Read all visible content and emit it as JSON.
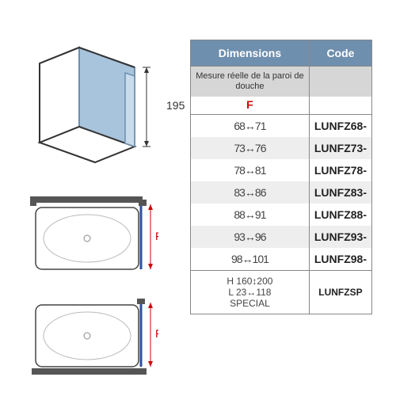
{
  "diagram": {
    "height_label": "195",
    "F_label": "F",
    "colors": {
      "outline": "#333333",
      "glass_fill": "#a8c4dc",
      "glass_stroke": "#6f8fae",
      "dim_line": "#333333",
      "f_red": "#d20000",
      "f_blue": "#2b4fa0",
      "tray_fill": "#ffffff",
      "tray_stroke": "#444444"
    },
    "iso": {
      "width": 150,
      "height": 140
    },
    "plan": {
      "width": 150,
      "height": 90
    }
  },
  "table": {
    "headers": {
      "dimensions": "Dimensions",
      "code": "Code"
    },
    "subheader": "Mesure réelle de la paroi de douche",
    "column_F": "F",
    "rows": [
      {
        "range": "68↔71",
        "code": "LUNFZ68-",
        "alt": false
      },
      {
        "range": "73↔76",
        "code": "LUNFZ73-",
        "alt": true
      },
      {
        "range": "78↔81",
        "code": "LUNFZ78-",
        "alt": false
      },
      {
        "range": "83↔86",
        "code": "LUNFZ83-",
        "alt": true
      },
      {
        "range": "88↔91",
        "code": "LUNFZ88-",
        "alt": false
      },
      {
        "range": "93↔96",
        "code": "LUNFZ93-",
        "alt": true
      },
      {
        "range": "98↔101",
        "code": "LUNFZ98-",
        "alt": false
      }
    ],
    "special": {
      "dims": "H 160↕200\nL 23↔118\nSPECIAL",
      "code": "LUNFZSP"
    },
    "styling": {
      "header_bg": "#6f8fae",
      "header_fg": "#ffffff",
      "sub_bg": "#d6d6d6",
      "alt_bg": "#eeeeee",
      "f_color": "#d20000",
      "border": "#888888",
      "font_size": 14
    }
  }
}
